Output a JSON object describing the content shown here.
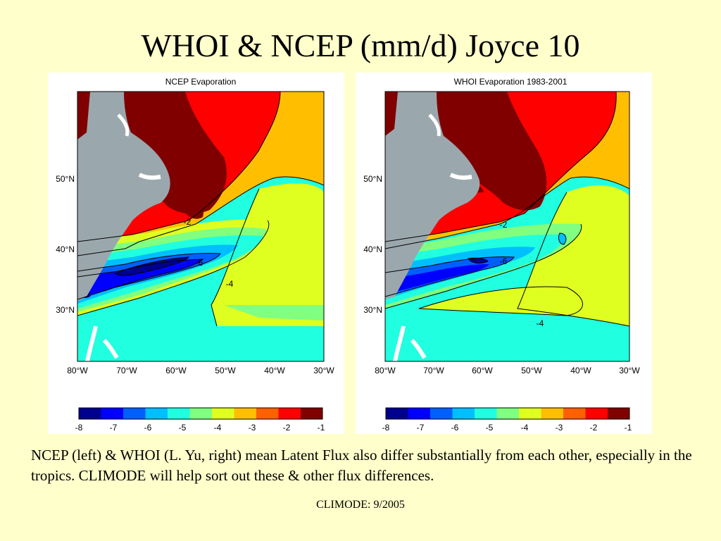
{
  "slide": {
    "title": "WHOI & NCEP (mm/d) Joyce 10",
    "caption": "NCEP (left) & WHOI (L. Yu, right) mean Latent Flux also differ substantially from each other, especially in the tropics. CLIMODE will help sort out these & other flux differences.",
    "footer": "CLIMODE: 9/2005"
  },
  "panels": [
    {
      "title": "NCEP Evaporation",
      "lon_ticks": [
        "80°W",
        "70°W",
        "60°W",
        "50°W",
        "40°W",
        "30°W"
      ],
      "lat_ticks": [
        "50°N",
        "40°N",
        "30°N"
      ],
      "contour_labels": [
        "-2",
        "-6",
        "-4"
      ],
      "colorbar_ticks": [
        "-8",
        "-7",
        "-6",
        "-5",
        "-4",
        "-3",
        "-2",
        "-1"
      ]
    },
    {
      "title": "WHOI Evaporation 1983-2001",
      "lon_ticks": [
        "80°W",
        "70°W",
        "60°W",
        "50°W",
        "40°W",
        "30°W"
      ],
      "lat_ticks": [
        "50°N",
        "40°N",
        "30°N"
      ],
      "contour_labels": [
        "-2",
        "-6",
        "-4"
      ],
      "colorbar_ticks": [
        "-8",
        "-7",
        "-6",
        "-5",
        "-4",
        "-3",
        "-2",
        "-1"
      ]
    }
  ],
  "colors": {
    "background": "#ffffcc",
    "land": "#9aa8ae",
    "colormap": [
      "#00008f",
      "#0000ff",
      "#0060ff",
      "#00bfff",
      "#20ffdf",
      "#80ff80",
      "#dfff20",
      "#ffbf00",
      "#ff6000",
      "#ff0000",
      "#800000"
    ]
  }
}
